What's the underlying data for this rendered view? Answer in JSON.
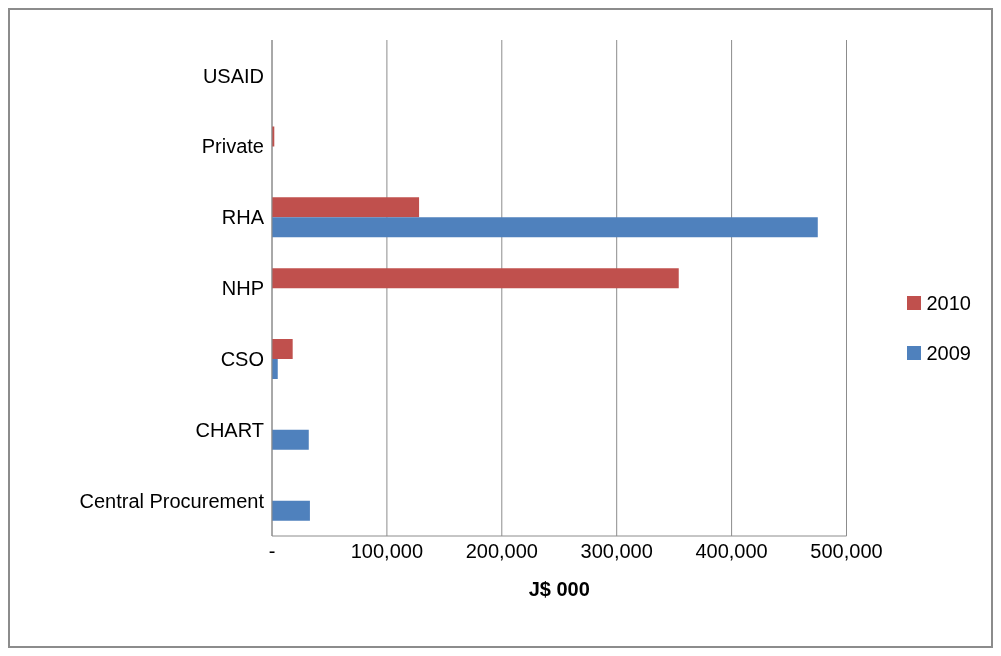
{
  "chart_data": {
    "type": "bar",
    "orientation": "horizontal",
    "xlabel": "J$ 000",
    "categories": [
      "USAID",
      "Private",
      "RHA",
      "NHP",
      "CSO",
      "CHART",
      "Central Procurement"
    ],
    "series": [
      {
        "name": "2010",
        "color": "#c0504d",
        "values": [
          0,
          2000,
          128000,
          354000,
          18000,
          0,
          0
        ]
      },
      {
        "name": "2009",
        "color": "#4f81bd",
        "values": [
          0,
          0,
          475000,
          0,
          5000,
          32000,
          33000
        ]
      }
    ],
    "xlim": [
      0,
      500000
    ],
    "xticks": [
      {
        "value": 0,
        "label": "-"
      },
      {
        "value": 100000,
        "label": "100,000"
      },
      {
        "value": 200000,
        "label": "200,000"
      },
      {
        "value": 300000,
        "label": "300,000"
      },
      {
        "value": 400000,
        "label": "400,000"
      },
      {
        "value": 500000,
        "label": "500,000"
      }
    ],
    "grid": "x",
    "legend": "right"
  }
}
